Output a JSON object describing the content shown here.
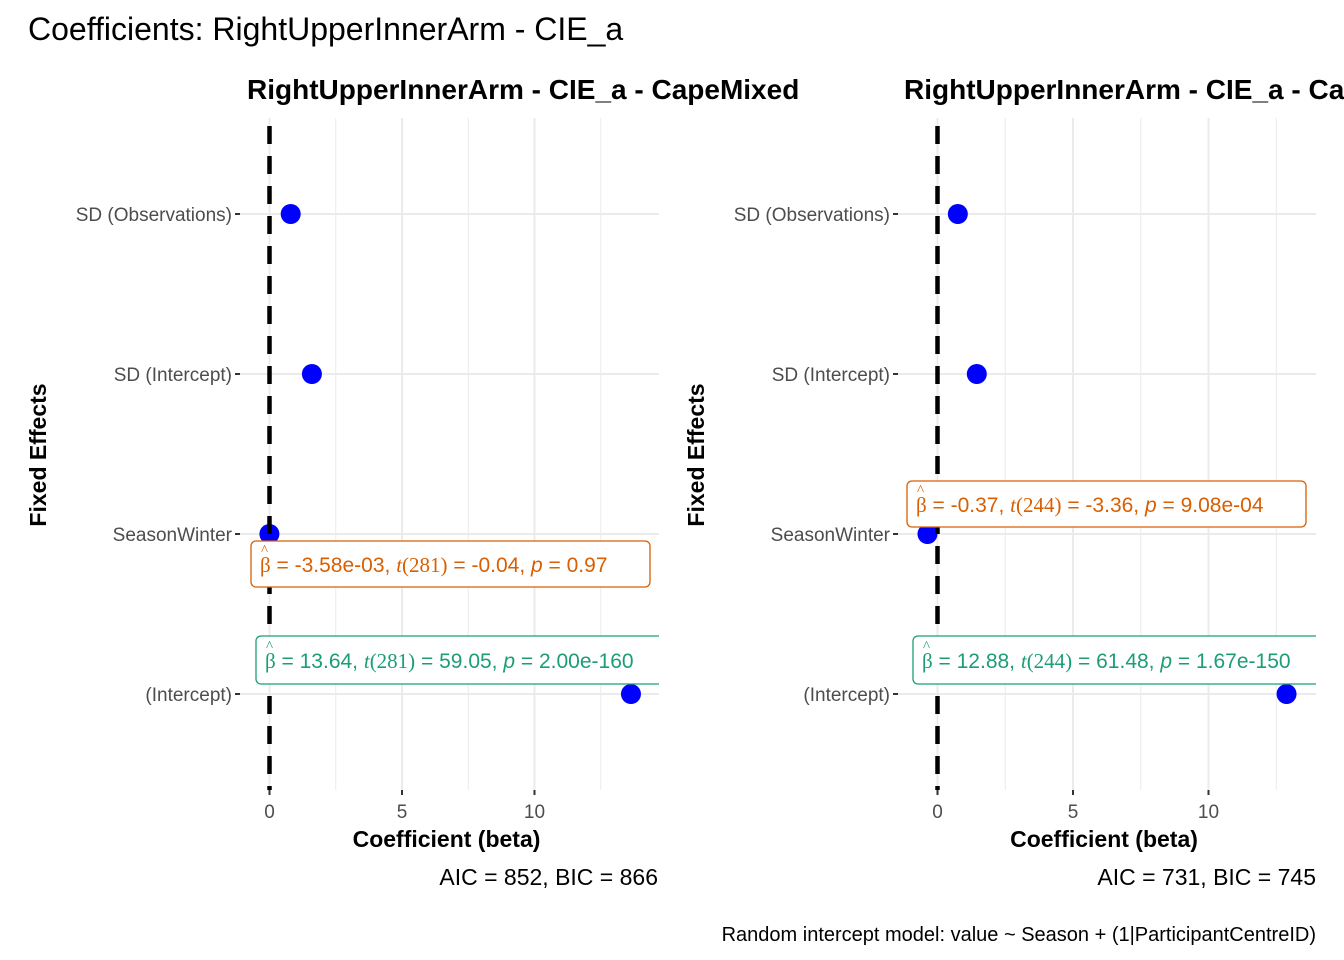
{
  "title": "Coefficients: RightUpperInnerArm - CIE_a",
  "caption": "Random intercept model: value ~ Season + (1|ParticipantCentreID)",
  "colors": {
    "point": "#0000ff",
    "grid": "#ebebeb",
    "tick_text": "#4d4d4d",
    "positive_annotation": "#1b9e77",
    "negative_annotation": "#d95f02",
    "zero_line": "#000000"
  },
  "chart_data": [
    {
      "type": "scatter",
      "title": "RightUpperInnerArm - CIE_a - CapeMixed",
      "xlabel": "Coefficient (beta)",
      "ylabel": "Fixed Effects",
      "xlim": [
        -1,
        14.7
      ],
      "x_ticks": [
        0,
        5,
        10
      ],
      "categories": [
        "SD (Observations)",
        "SD (Intercept)",
        "SeasonWinter",
        "(Intercept)"
      ],
      "values": [
        0.8,
        1.6,
        -0.00358,
        13.64
      ],
      "grid": true,
      "reference_line": 0,
      "info": "AIC = 852, BIC = 866",
      "annotations": [
        {
          "term": "SeasonWinter",
          "estimate": "-3.58e-03",
          "df": "281",
          "t": "-0.04",
          "p": "0.97",
          "sign": "negative"
        },
        {
          "term": "(Intercept)",
          "estimate": "13.64",
          "df": "281",
          "t": "59.05",
          "p": "2.00e-160",
          "sign": "positive"
        }
      ]
    },
    {
      "type": "scatter",
      "title": "RightUpperInnerArm - CIE_a - CapeMixed",
      "xlabel": "Coefficient (beta)",
      "ylabel": "Fixed Effects",
      "xlim": [
        -1,
        14.3
      ],
      "x_ticks": [
        0,
        5,
        10
      ],
      "categories": [
        "SD (Observations)",
        "SD (Intercept)",
        "SeasonWinter",
        "(Intercept)"
      ],
      "values": [
        0.75,
        1.45,
        -0.37,
        12.88
      ],
      "grid": true,
      "reference_line": 0,
      "info": "AIC = 731, BIC = 745",
      "annotations": [
        {
          "term": "SeasonWinter",
          "estimate": "-0.37",
          "df": "244",
          "t": "-3.36",
          "p": "9.08e-04",
          "sign": "negative"
        },
        {
          "term": "(Intercept)",
          "estimate": "12.88",
          "df": "244",
          "t": "61.48",
          "p": "1.67e-150",
          "sign": "positive"
        }
      ]
    }
  ]
}
